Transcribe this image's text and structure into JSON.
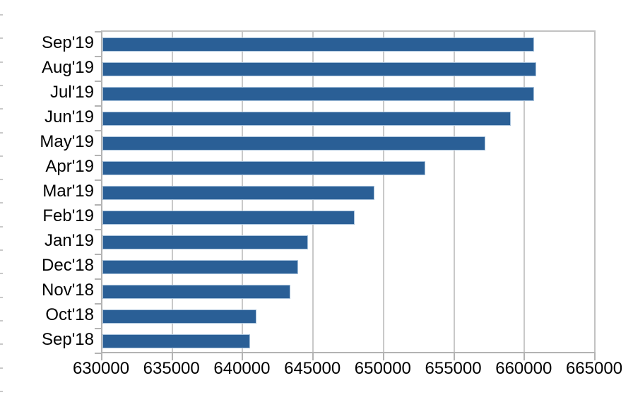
{
  "chart_data": {
    "type": "bar",
    "orientation": "horizontal",
    "title": "",
    "xlabel": "",
    "ylabel": "",
    "legend": "none",
    "categories": [
      "Sep'19",
      "Aug'19",
      "Jul'19",
      "Jun'19",
      "May'19",
      "Apr'19",
      "Mar'19",
      "Feb'19",
      "Jan'19",
      "Dec'18",
      "Nov'18",
      "Oct'18",
      "Sep'18"
    ],
    "values": [
      660650,
      660800,
      660650,
      659000,
      657200,
      652900,
      649300,
      647900,
      644600,
      643900,
      643350,
      640950,
      640500
    ],
    "xlim": [
      630000,
      665000
    ],
    "x_tick_step": 5000,
    "x_tick_labels": [
      "630000",
      "635000",
      "640000",
      "645000",
      "650000",
      "655000",
      "660000",
      "665000"
    ],
    "grid": "vertical gridlines every 5000, plot framed top and right",
    "colors": {
      "bar": "#2A5F96",
      "bar_edge": "#A9C3DC",
      "gridline": "#C9C9C9",
      "axis": "#B3B3B3",
      "frame": "#C2C2C2",
      "text": "#000000",
      "edge_tick": "#C9C9C9"
    },
    "left_edge_ticks": {
      "count": 17,
      "start_y": 20,
      "spacing": 33.3,
      "note": "small gray dashes along the left edge of the screenshot (cropped axis remnant)"
    }
  }
}
